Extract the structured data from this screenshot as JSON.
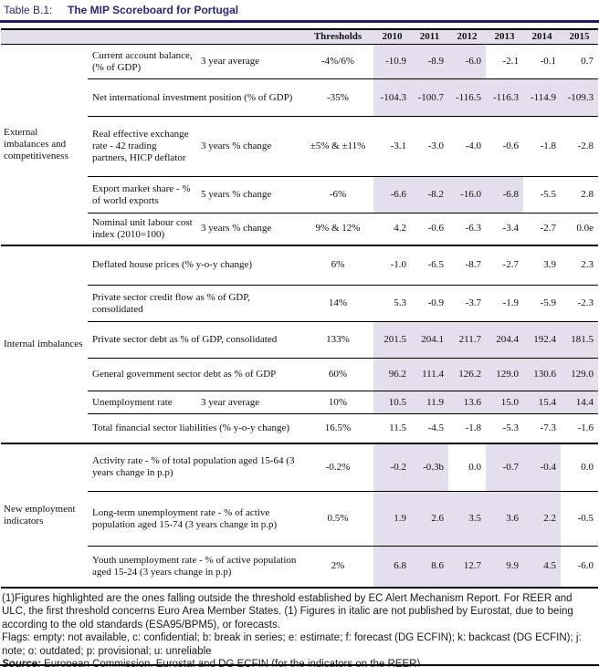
{
  "title": {
    "label": "Table B.1:",
    "text": "The MIP Scoreboard for Portugal"
  },
  "colors": {
    "title-navy": "#28287E",
    "rule-navy": "#1C1C66",
    "highlight-lavender": "#E4DFEC"
  },
  "table": {
    "header": {
      "thresholds": "Thresholds",
      "years": [
        "2010",
        "2011",
        "2012",
        "2013",
        "2014",
        "2015"
      ]
    },
    "groups": [
      {
        "label": "External imbalances and competitiveness",
        "rows": [
          {
            "indicator": "Current account balance, (% of GDP)",
            "sublabel": "3 year average",
            "threshold": "-4%/6%",
            "values": [
              "-10.9",
              "-8.9",
              "-6.0",
              "-2.1",
              "-0.1",
              "0.7"
            ],
            "highlight": [
              true,
              true,
              true,
              false,
              false,
              false
            ]
          },
          {
            "indicator": "Net international investment position (% of GDP)",
            "sublabel": "",
            "threshold": "-35%",
            "values": [
              "-104.3",
              "-100.7",
              "-116.5",
              "-116.3",
              "-114.9",
              "-109.3"
            ],
            "highlight": [
              true,
              true,
              true,
              true,
              true,
              true
            ]
          },
          {
            "indicator": "Real effective exchange rate - 42 trading partners, HICP deflator",
            "sublabel": "3 years % change",
            "threshold": "±5% & ±11%",
            "values": [
              "-3.1",
              "-3.0",
              "-4.0",
              "-0.6",
              "-1.8",
              "-2.8"
            ],
            "highlight": [
              false,
              false,
              false,
              false,
              false,
              false
            ]
          },
          {
            "indicator": "Export market share - % of world exports",
            "sublabel": "5 years % change",
            "threshold": "-6%",
            "values": [
              "-6.6",
              "-8.2",
              "-16.0",
              "-6.8",
              "-5.5",
              "2.8"
            ],
            "highlight": [
              true,
              true,
              true,
              true,
              false,
              false
            ]
          },
          {
            "indicator": "Nominal unit labour cost index (2010=100)",
            "sublabel": "3 years % change",
            "threshold": "9% & 12%",
            "values": [
              "4.2",
              "-0.6",
              "-6.3",
              "-3.4",
              "-2.7",
              "0.0e"
            ],
            "highlight": [
              false,
              false,
              false,
              false,
              false,
              false
            ]
          }
        ]
      },
      {
        "label": "Internal imbalances",
        "rows": [
          {
            "indicator": "Deflated house prices (% y-o-y change)",
            "sublabel": "",
            "threshold": "6%",
            "values": [
              "-1.0",
              "-6.5",
              "-8.7",
              "-2.7",
              "3.9",
              "2.3"
            ],
            "highlight": [
              false,
              false,
              false,
              false,
              false,
              false
            ]
          },
          {
            "indicator": "Private sector credit flow as % of GDP, consolidated",
            "sublabel": "",
            "threshold": "14%",
            "values": [
              "5.3",
              "-0.9",
              "-3.7",
              "-1.9",
              "-5.9",
              "-2.3"
            ],
            "highlight": [
              false,
              false,
              false,
              false,
              false,
              false
            ]
          },
          {
            "indicator": "Private sector debt as % of GDP, consolidated",
            "sublabel": "",
            "threshold": "133%",
            "values": [
              "201.5",
              "204.1",
              "211.7",
              "204.4",
              "192.4",
              "181.5"
            ],
            "highlight": [
              true,
              true,
              true,
              true,
              true,
              true
            ]
          },
          {
            "indicator": "General government sector debt as % of GDP",
            "sublabel": "",
            "threshold": "60%",
            "values": [
              "96.2",
              "111.4",
              "126.2",
              "129.0",
              "130.6",
              "129.0"
            ],
            "highlight": [
              true,
              true,
              true,
              true,
              true,
              true
            ]
          },
          {
            "indicator": "Unemployment rate",
            "sublabel": "3 year average",
            "threshold": "10%",
            "values": [
              "10.5",
              "11.9",
              "13.6",
              "15.0",
              "15.4",
              "14.4"
            ],
            "highlight": [
              true,
              true,
              true,
              true,
              true,
              true
            ]
          },
          {
            "indicator": "Total financial sector liabilities (% y-o-y change)",
            "sublabel": "",
            "threshold": "16.5%",
            "values": [
              "11.5",
              "-4.5",
              "-1.8",
              "-5.3",
              "-7.3",
              "-1.6"
            ],
            "highlight": [
              false,
              false,
              false,
              false,
              false,
              false
            ]
          }
        ]
      },
      {
        "label": "New employment indicators",
        "rows": [
          {
            "indicator": "Activity rate - % of total population aged 15-64 (3 years change in p.p)",
            "sublabel": "",
            "threshold": "-0.2%",
            "values": [
              "-0.2",
              "-0.3b",
              "0.0",
              "-0.7",
              "-0.4",
              "0.0"
            ],
            "highlight": [
              true,
              true,
              false,
              true,
              true,
              false
            ]
          },
          {
            "indicator": "Long-term unemployment rate - % of active population aged 15-74 (3 years change in p.p)",
            "sublabel": "",
            "threshold": "0.5%",
            "values": [
              "1.9",
              "2.6",
              "3.5",
              "3.6",
              "2.2",
              "-0.5"
            ],
            "highlight": [
              true,
              true,
              true,
              true,
              true,
              false
            ]
          },
          {
            "indicator": "Youth unemployment rate - % of active population aged 15-24 (3 years change in p.p)",
            "sublabel": "",
            "threshold": "2%",
            "values": [
              "6.8",
              "8.6",
              "12.7",
              "9.9",
              "4.5",
              "-6.0"
            ],
            "highlight": [
              true,
              true,
              true,
              true,
              true,
              false
            ]
          }
        ]
      }
    ]
  },
  "footnotes": {
    "note1": "(1)Figures highlighted are the ones falling outside the threshold established by EC Alert Mechanism Report. For REER and ULC, the first threshold concerns Euro Area Member States. (1) Figures in italic are not published by Eurostat, due to being according to the old standards (ESA95/BPM5), or forecasts.",
    "flags": "Flags: empty: not available, c: confidential; b: break in series; e: estimate; f: forecast (DG ECFIN); k: backcast (DG ECFIN); j: note; o: outdated; p: provisional; u: unreliable",
    "source_label": "Source:",
    "source_text": "European Commission, Eurostat and DG ECFIN (for the indicators on the REER)"
  }
}
